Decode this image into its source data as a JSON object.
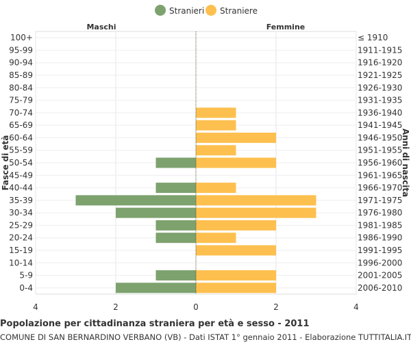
{
  "chart_data": {
    "type": "bar",
    "title": "Popolazione per cittadinanza straniera per età e sesso - 2011",
    "subtitle": "COMUNE DI SAN BERNARDINO VERBANO (VB) - Dati ISTAT 1° gennaio 2011 - Elaborazione TUTTITALIA.IT",
    "ylabel_left": "Fasce di età",
    "ylabel_right": "Anni di nascita",
    "side_left": "Maschi",
    "side_right": "Femmine",
    "xlim": [
      -4,
      4
    ],
    "x_ticks": [
      "4",
      "2",
      "0",
      "2",
      "4"
    ],
    "legend_position": "top-center",
    "categories": [
      "100+",
      "95-99",
      "90-94",
      "85-89",
      "80-84",
      "75-79",
      "70-74",
      "65-69",
      "60-64",
      "55-59",
      "50-54",
      "45-49",
      "40-44",
      "35-39",
      "30-34",
      "25-29",
      "20-24",
      "15-19",
      "10-14",
      "5-9",
      "0-4"
    ],
    "birth_years": [
      "≤ 1910",
      "1911-1915",
      "1916-1920",
      "1921-1925",
      "1926-1930",
      "1931-1935",
      "1936-1940",
      "1941-1945",
      "1946-1950",
      "1951-1955",
      "1956-1960",
      "1961-1965",
      "1966-1970",
      "1971-1975",
      "1976-1980",
      "1981-1985",
      "1986-1990",
      "1991-1995",
      "1996-2000",
      "2001-2005",
      "2006-2010"
    ],
    "series": [
      {
        "name": "Stranieri",
        "color": "#7da26e",
        "side": "left",
        "values": [
          0,
          0,
          0,
          0,
          0,
          0,
          0,
          0,
          0,
          0,
          1,
          0,
          1,
          3,
          2,
          1,
          1,
          0,
          0,
          1,
          2
        ]
      },
      {
        "name": "Straniere",
        "color": "#fdc04f",
        "side": "right",
        "values": [
          0,
          0,
          0,
          0,
          0,
          0,
          1,
          1,
          2,
          1,
          2,
          0,
          1,
          3,
          3,
          2,
          1,
          2,
          0,
          2,
          2
        ]
      }
    ]
  }
}
